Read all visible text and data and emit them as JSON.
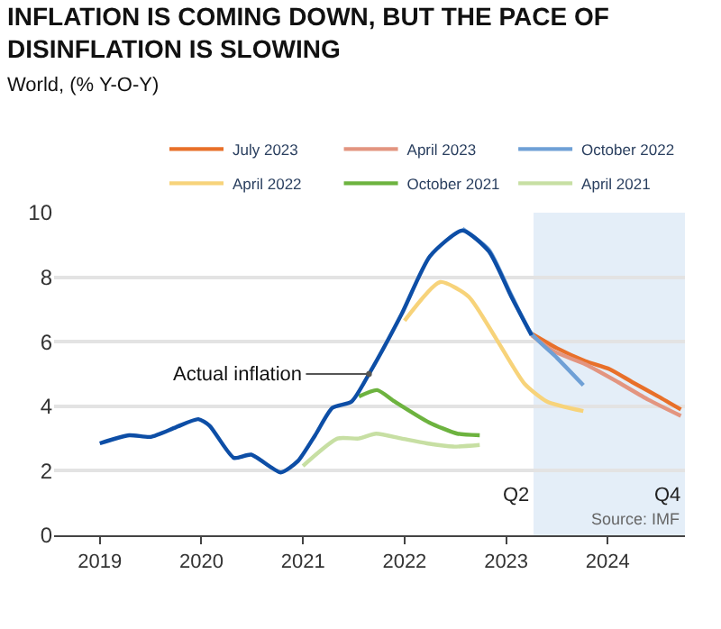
{
  "chart_data": {
    "type": "line",
    "title": "INFLATION IS COMING DOWN, BUT THE PACE OF DISINFLATION IS SLOWING",
    "subtitle": "World, (% Y-O-Y)",
    "series": [
      {
        "name": "July 2023",
        "color": "#e8702a",
        "x": [
          2023.25,
          2023.5,
          2023.78,
          2024.02,
          2024.24,
          2024.5,
          2024.72
        ],
        "values": [
          6.25,
          5.8,
          5.4,
          5.15,
          4.75,
          4.3,
          3.9
        ]
      },
      {
        "name": "April 2023",
        "color": "#e39580",
        "x": [
          2023.25,
          2023.47,
          2023.78,
          2024.1,
          2024.4,
          2024.72
        ],
        "values": [
          6.2,
          5.7,
          5.3,
          4.75,
          4.2,
          3.7
        ]
      },
      {
        "name": "October 2022",
        "color": "#6fa0d6",
        "x": [
          2022.57,
          2022.83,
          2023.05,
          2023.25,
          2023.5,
          2023.76
        ],
        "values": [
          9.5,
          8.85,
          7.45,
          6.25,
          5.5,
          4.65
        ]
      },
      {
        "name": "April 2022",
        "color": "#f7d37a",
        "x": [
          2022.0,
          2022.35,
          2022.63,
          2022.9,
          2023.18,
          2023.4,
          2023.76
        ],
        "values": [
          6.65,
          7.85,
          7.4,
          6.1,
          4.7,
          4.15,
          3.85
        ]
      },
      {
        "name": "October 2021",
        "color": "#6db33f",
        "x": [
          2021.55,
          2021.73,
          2021.9,
          2022.24,
          2022.52,
          2022.74
        ],
        "values": [
          4.3,
          4.5,
          4.15,
          3.5,
          3.15,
          3.1
        ]
      },
      {
        "name": "April 2021",
        "color": "#c7dfa3",
        "x": [
          2021.0,
          2021.34,
          2021.55,
          2021.72,
          2021.97,
          2022.22,
          2022.48,
          2022.74
        ],
        "values": [
          2.15,
          3.0,
          3.0,
          3.15,
          3.0,
          2.85,
          2.75,
          2.8
        ]
      },
      {
        "color": "#0d4ea6",
        "x": [
          2019.0,
          2019.29,
          2019.5,
          2019.75,
          2019.97,
          2020.08,
          2020.32,
          2020.49,
          2020.78,
          2020.95,
          2021.12,
          2021.29,
          2021.48,
          2021.65,
          2021.97,
          2022.25,
          2022.57,
          2022.83,
          2023.05,
          2023.25
        ],
        "values": [
          2.85,
          3.1,
          3.05,
          3.35,
          3.6,
          3.4,
          2.4,
          2.5,
          1.95,
          2.3,
          3.1,
          3.95,
          4.15,
          5.0,
          6.85,
          8.65,
          9.45,
          8.8,
          7.4,
          6.2
        ]
      }
    ],
    "xlim": [
      2018.55,
      2024.76
    ],
    "xticks": [
      2019,
      2020,
      2021,
      2022,
      2023,
      2024
    ],
    "ylim": [
      0,
      10
    ],
    "yticks": [
      0,
      2,
      4,
      6,
      8,
      10
    ],
    "grid": "y",
    "legend": "top",
    "marker": "none",
    "line_style": "solid",
    "bands": [
      {
        "axis": "x",
        "from": 2023.27,
        "to": 2024.76,
        "color": "#e4eef8"
      }
    ],
    "annotations": [
      {
        "text": "Actual inflation",
        "x": 2021.65,
        "y": 5.0
      },
      {
        "text": "Q2",
        "x": 2023.27,
        "y": 0.8
      },
      {
        "text": "Q4",
        "x": 2024.76,
        "y": 0.8
      },
      "Source: IMF"
    ]
  }
}
